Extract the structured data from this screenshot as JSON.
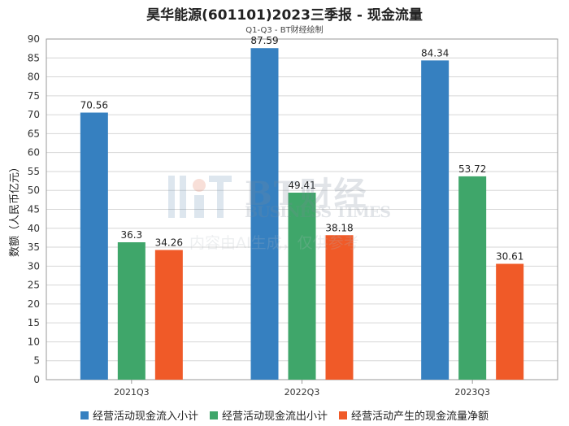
{
  "header": {
    "title": "昊华能源(601101)2023三季报 - 现金流量",
    "subtitle": "Q1-Q3 - BT财经绘制"
  },
  "watermark": {
    "brand_cn": "BT财经",
    "brand_en": "BUSINESS TIMES",
    "note": "内容由AI生成，仅供参考"
  },
  "chart_data": {
    "type": "bar",
    "categories": [
      "2021Q3",
      "2022Q3",
      "2023Q3"
    ],
    "ylabel": "数额（人民币亿元）",
    "ylim": [
      0,
      90
    ],
    "ytick_step": 5,
    "grid": true,
    "legend_position": "bottom",
    "series": [
      {
        "name": "经营活动现金流入小计",
        "color": "#3680c0",
        "values": [
          70.56,
          87.59,
          84.34
        ]
      },
      {
        "name": "经营活动现金流出小计",
        "color": "#3fa66a",
        "values": [
          36.3,
          49.41,
          53.72
        ]
      },
      {
        "name": "经营活动产生的现金流量净额",
        "color": "#f05a28",
        "values": [
          34.26,
          38.18,
          30.61
        ]
      }
    ]
  }
}
